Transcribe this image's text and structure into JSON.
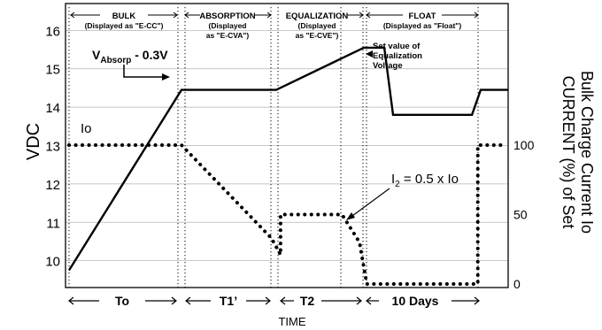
{
  "chart_data": {
    "type": "line",
    "xlabel": "TIME",
    "ylabel_left": "VDC",
    "ylabel_right_line1": "CURRENT (%) of Set",
    "ylabel_right_line2": "Bulk Charge Current Io",
    "y_left_ticks": [
      "16",
      "15",
      "14",
      "13",
      "12",
      "11",
      "10"
    ],
    "y_left_values": [
      16,
      15,
      14,
      13,
      12,
      11,
      10
    ],
    "y_left_range": [
      9.3,
      16.7
    ],
    "y_right_ticks": [
      "100",
      "50",
      "0"
    ],
    "y_right_values": [
      100,
      50,
      0
    ],
    "y_right_range": [
      0,
      100
    ],
    "stages": [
      {
        "name": "BULK",
        "sub1": "(Displayed as \"E-CC\")",
        "sub2": ""
      },
      {
        "name": "ABSORPTION",
        "sub1": "(Displayed",
        "sub2": "as \"E-CVA\")"
      },
      {
        "name": "EQUALIZATION",
        "sub1": "(Displayed",
        "sub2": "as \"E-CVE\")"
      },
      {
        "name": "FLOAT",
        "sub1": "(Displayed as \"Float\")",
        "sub2": ""
      }
    ],
    "durations": [
      "To",
      "T1’",
      "T2",
      "10 Days"
    ],
    "voltage_series": {
      "name": "Voltage",
      "points": [
        [
          0,
          9.75
        ],
        [
          1,
          14.45
        ],
        [
          2,
          14.45
        ],
        [
          3,
          15.55
        ],
        [
          3.35,
          15.55
        ],
        [
          3.5,
          13.8
        ],
        [
          4.85,
          13.8
        ],
        [
          5,
          14.45
        ],
        [
          5.2,
          14.45
        ]
      ]
    },
    "current_series": {
      "name": "Current",
      "points": [
        [
          0,
          100
        ],
        [
          1,
          100
        ],
        [
          1.95,
          33
        ],
        [
          2.05,
          21
        ],
        [
          2.05,
          50
        ],
        [
          2.75,
          50
        ],
        [
          2.95,
          30
        ],
        [
          3.05,
          0
        ],
        [
          4.95,
          0
        ],
        [
          4.95,
          100
        ],
        [
          5.15,
          100
        ]
      ]
    },
    "annotations": {
      "vabsorp_v": "V",
      "vabsorp_sub": "Absorp",
      "vabsorp_rest": " - 0.3V",
      "io": "Io",
      "i2_i": "I",
      "i2_sub": "2",
      "i2_rest": " = 0.5 x Io",
      "setvalue_line1": "Set value of",
      "setvalue_line2": "Equalization",
      "setvalue_line3": "Voltage"
    }
  }
}
